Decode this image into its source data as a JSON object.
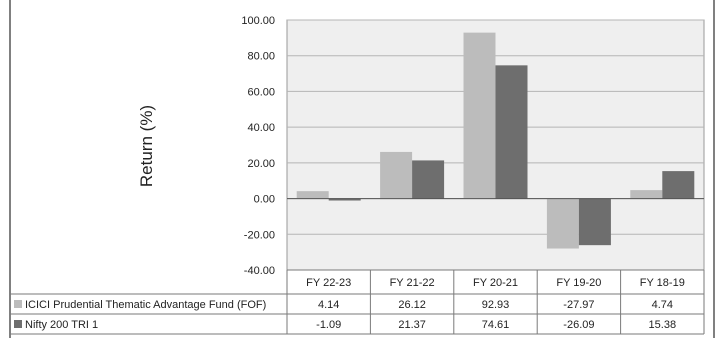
{
  "chart_data": {
    "type": "bar",
    "title": "",
    "xlabel": "",
    "ylabel": "Return (%)",
    "ylim": [
      -40,
      100
    ],
    "yticks": [
      100,
      80,
      60,
      40,
      20,
      0,
      -20,
      -40
    ],
    "ytick_labels": [
      "100.00",
      "80.00",
      "60.00",
      "40.00",
      "20.00",
      "0.00",
      "-20.00",
      "-40.00"
    ],
    "categories": [
      "FY 22-23",
      "FY 21-22",
      "FY 20-21",
      "FY 19-20",
      "FY 18-19"
    ],
    "grid": true,
    "legend": "data-table-left",
    "series": [
      {
        "name": "ICICI Prudential Thematic Advantage Fund (FOF)",
        "color": "#bcbcbc",
        "values": [
          4.14,
          26.12,
          92.93,
          -27.97,
          4.74
        ],
        "labels": [
          "4.14",
          "26.12",
          "92.93",
          "-27.97",
          "4.74"
        ]
      },
      {
        "name": "Nifty 200 TRI 1",
        "color": "#6e6e6e",
        "values": [
          -1.09,
          21.37,
          74.61,
          -26.09,
          15.38
        ],
        "labels": [
          "-1.09",
          "21.37",
          "74.61",
          "-26.09",
          "15.38"
        ]
      }
    ]
  }
}
